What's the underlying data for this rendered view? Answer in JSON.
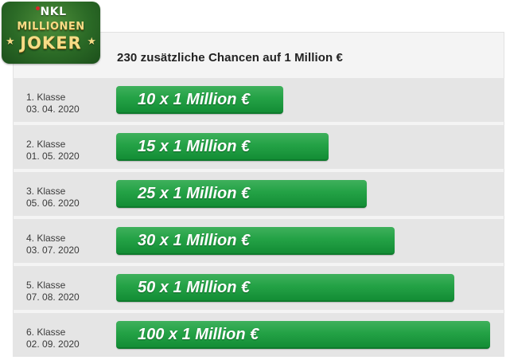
{
  "logo": {
    "top_text": "NKL",
    "line1": "MILLIONEN",
    "line2": "JOKER",
    "star": "★"
  },
  "headline": "230 zusätzliche Chancen auf 1 Million €",
  "rows": [
    {
      "klasse": "1. Klasse",
      "date": "03. 04. 2020",
      "label": "10 x 1 Million €",
      "count": 10
    },
    {
      "klasse": "2. Klasse",
      "date": "01. 05. 2020",
      "label": "15 x 1 Million €",
      "count": 15
    },
    {
      "klasse": "3. Klasse",
      "date": "05. 06. 2020",
      "label": "25 x 1 Million €",
      "count": 25
    },
    {
      "klasse": "4. Klasse",
      "date": "03. 07. 2020",
      "label": "30 x 1 Million €",
      "count": 30
    },
    {
      "klasse": "5. Klasse",
      "date": "07. 08. 2020",
      "label": "50 x 1 Million €",
      "count": 50
    },
    {
      "klasse": "6. Klasse",
      "date": "02. 09. 2020",
      "label": "100 x 1 Million €",
      "count": 100
    }
  ],
  "colors": {
    "bar": "#24a246",
    "bar_dark": "#0f7a2d",
    "row_bg": "#e5e5e5",
    "logo_green": "#2b6a26",
    "logo_gold": "#f6dc86"
  }
}
